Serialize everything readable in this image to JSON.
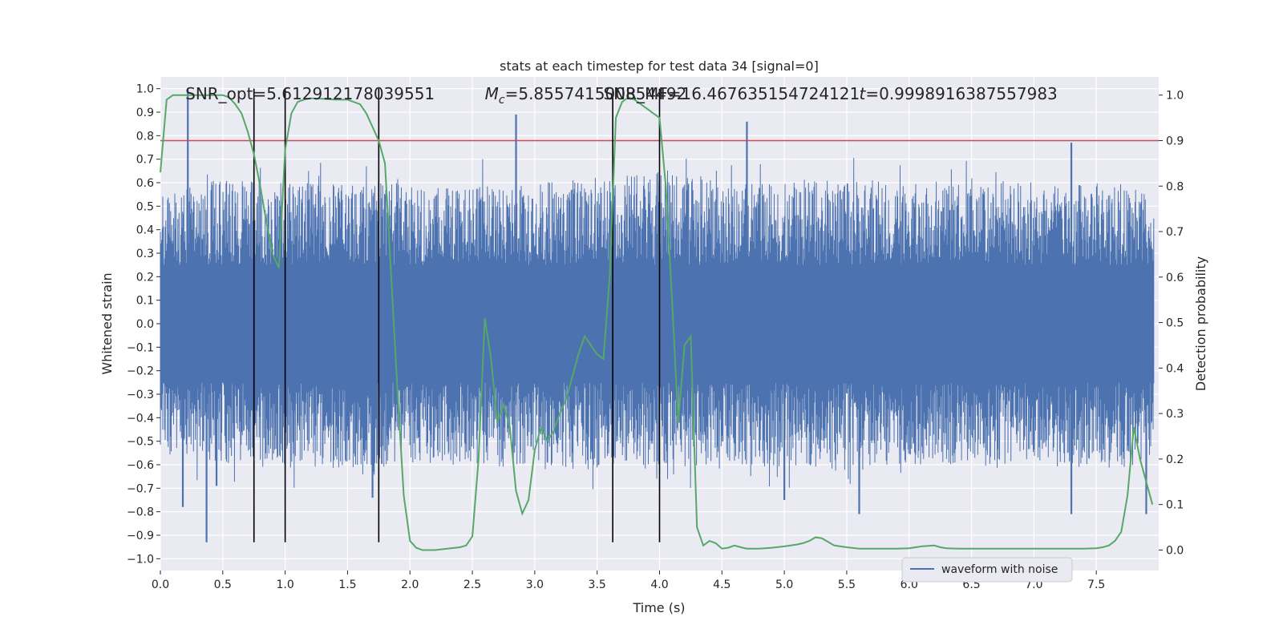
{
  "chart_data": {
    "type": "line",
    "title": "stats at each timestep for test data 34 [signal=0]",
    "xlabel": "Time (s)",
    "ylabel_left": "Whitened strain",
    "ylabel_right": "Detection probability",
    "xlim": [
      0,
      8
    ],
    "ylim_left": [
      -1.05,
      1.05
    ],
    "ylim_right": [
      -0.045,
      1.04
    ],
    "xticks": [
      0.0,
      0.5,
      1.0,
      1.5,
      2.0,
      2.5,
      3.0,
      3.5,
      4.0,
      4.5,
      5.0,
      5.5,
      6.0,
      6.5,
      7.0,
      7.5
    ],
    "yticks_left": [
      -1.0,
      -0.9,
      -0.8,
      -0.7,
      -0.6,
      -0.5,
      -0.4,
      -0.3,
      -0.2,
      -0.1,
      0.0,
      0.1,
      0.2,
      0.3,
      0.4,
      0.5,
      0.6,
      0.7,
      0.8,
      0.9,
      1.0
    ],
    "yticks_right": [
      0.0,
      0.1,
      0.2,
      0.3,
      0.4,
      0.5,
      0.6,
      0.7,
      0.8,
      0.9,
      1.0
    ],
    "grid": true,
    "legend": {
      "placement": "lower-right",
      "entries": [
        "waveform with noise"
      ]
    },
    "annotations": [
      {
        "text": "SNR_opt=5.612912178039551",
        "x": 0.2
      },
      {
        "text": "=5.855741500854492",
        "prefix_math": "M",
        "subscript": "c",
        "x": 2.6
      },
      {
        "text": "SNR_MF=16.467635154724121",
        "x": 3.55
      },
      {
        "text": "=0.9998916387557983",
        "prefix_math": "t",
        "x": 5.6
      }
    ],
    "threshold": {
      "value_right": 0.9,
      "color": "#c44e52"
    },
    "vlines": [
      0.75,
      1.0,
      1.75,
      3.625,
      4.0
    ],
    "series": [
      {
        "name": "waveform with noise",
        "color": "#4c72b0",
        "axis": "left",
        "envelope": {
          "x": [
            0.0,
            0.5,
            1.0,
            1.5,
            2.0,
            2.5,
            3.0,
            3.5,
            4.0,
            4.5,
            5.0,
            5.5,
            6.0,
            6.5,
            7.0,
            7.5,
            7.95
          ],
          "typical_max": [
            0.55,
            0.62,
            0.6,
            0.6,
            0.6,
            0.58,
            0.6,
            0.62,
            0.66,
            0.6,
            0.6,
            0.62,
            0.6,
            0.62,
            0.6,
            0.6,
            0.55
          ],
          "typical_min": [
            -0.55,
            -0.6,
            -0.62,
            -0.62,
            -0.6,
            -0.6,
            -0.62,
            -0.62,
            -0.62,
            -0.62,
            -0.62,
            -0.62,
            -0.6,
            -0.62,
            -0.6,
            -0.62,
            -0.6
          ]
        },
        "peaks": [
          {
            "x": 0.22,
            "y": 1.0
          },
          {
            "x": 0.37,
            "y": -0.93
          },
          {
            "x": 0.45,
            "y": -0.69
          },
          {
            "x": 0.18,
            "y": -0.78
          },
          {
            "x": 2.85,
            "y": 0.89
          },
          {
            "x": 4.7,
            "y": 0.86
          },
          {
            "x": 7.3,
            "y": 0.77
          },
          {
            "x": 7.9,
            "y": -0.81
          },
          {
            "x": 5.6,
            "y": -0.81
          },
          {
            "x": 7.3,
            "y": -0.81
          },
          {
            "x": 5.0,
            "y": -0.75
          },
          {
            "x": 1.7,
            "y": -0.74
          }
        ]
      },
      {
        "name": "",
        "color": "#55a868",
        "axis": "right",
        "x": [
          0.0,
          0.05,
          0.1,
          0.2,
          0.3,
          0.4,
          0.5,
          0.55,
          0.6,
          0.65,
          0.7,
          0.75,
          0.8,
          0.85,
          0.9,
          0.95,
          1.0,
          1.05,
          1.1,
          1.15,
          1.2,
          1.3,
          1.4,
          1.5,
          1.6,
          1.65,
          1.7,
          1.75,
          1.8,
          1.85,
          1.9,
          1.95,
          2.0,
          2.05,
          2.1,
          2.2,
          2.3,
          2.4,
          2.45,
          2.5,
          2.55,
          2.6,
          2.65,
          2.7,
          2.75,
          2.8,
          2.85,
          2.9,
          2.95,
          3.0,
          3.05,
          3.1,
          3.15,
          3.2,
          3.25,
          3.3,
          3.35,
          3.4,
          3.45,
          3.5,
          3.55,
          3.6,
          3.65,
          3.7,
          3.75,
          3.8,
          3.85,
          3.9,
          3.95,
          4.0,
          4.05,
          4.1,
          4.15,
          4.2,
          4.25,
          4.3,
          4.35,
          4.4,
          4.45,
          4.5,
          4.55,
          4.6,
          4.65,
          4.7,
          4.8,
          4.9,
          5.0,
          5.1,
          5.15,
          5.2,
          5.25,
          5.3,
          5.35,
          5.4,
          5.5,
          5.6,
          5.7,
          5.8,
          5.9,
          6.0,
          6.1,
          6.2,
          6.25,
          6.3,
          6.4,
          6.5,
          6.6,
          6.7,
          6.8,
          6.9,
          7.0,
          7.1,
          7.2,
          7.3,
          7.4,
          7.5,
          7.55,
          7.6,
          7.65,
          7.7,
          7.75,
          7.8,
          7.85,
          7.9,
          7.95
        ],
        "y": [
          0.83,
          0.99,
          1.0,
          1.0,
          1.0,
          1.0,
          1.0,
          0.995,
          0.98,
          0.96,
          0.92,
          0.87,
          0.8,
          0.72,
          0.65,
          0.62,
          0.88,
          0.96,
          0.985,
          0.99,
          0.993,
          0.992,
          0.99,
          0.99,
          0.98,
          0.96,
          0.93,
          0.9,
          0.85,
          0.6,
          0.35,
          0.12,
          0.02,
          0.005,
          0.0,
          0.0,
          0.003,
          0.006,
          0.01,
          0.03,
          0.2,
          0.51,
          0.42,
          0.28,
          0.32,
          0.27,
          0.13,
          0.08,
          0.11,
          0.22,
          0.27,
          0.24,
          0.26,
          0.3,
          0.33,
          0.38,
          0.43,
          0.47,
          0.45,
          0.43,
          0.42,
          0.6,
          0.95,
          0.985,
          0.995,
          0.99,
          0.98,
          0.97,
          0.96,
          0.95,
          0.8,
          0.55,
          0.28,
          0.45,
          0.47,
          0.05,
          0.01,
          0.02,
          0.015,
          0.003,
          0.005,
          0.01,
          0.006,
          0.003,
          0.003,
          0.005,
          0.008,
          0.012,
          0.015,
          0.02,
          0.028,
          0.026,
          0.018,
          0.01,
          0.006,
          0.003,
          0.003,
          0.003,
          0.003,
          0.004,
          0.008,
          0.01,
          0.006,
          0.004,
          0.003,
          0.003,
          0.003,
          0.003,
          0.003,
          0.003,
          0.003,
          0.003,
          0.003,
          0.003,
          0.003,
          0.004,
          0.006,
          0.01,
          0.02,
          0.04,
          0.12,
          0.27,
          0.2,
          0.15,
          0.1
        ]
      }
    ]
  }
}
